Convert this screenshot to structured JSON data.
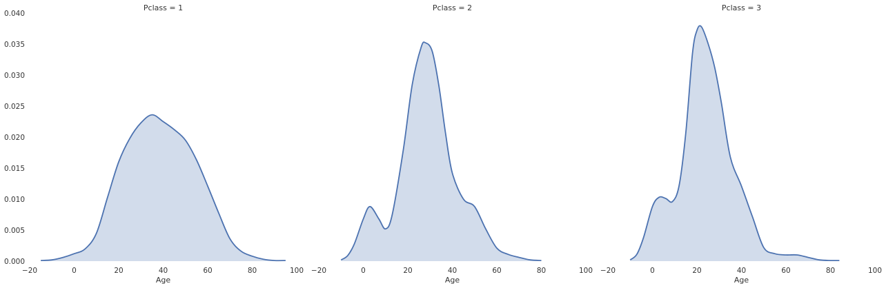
{
  "chart_data": {
    "type": "area",
    "ylim": [
      0,
      0.04
    ],
    "y_ticks": [
      "0.000",
      "0.005",
      "0.010",
      "0.015",
      "0.020",
      "0.025",
      "0.030",
      "0.035",
      "0.040"
    ],
    "grid": false,
    "colors": {
      "line": "#4c72b0",
      "fill": "#4c72b0",
      "fill_opacity": 0.25
    },
    "panels": [
      {
        "title": "Pclass = 1",
        "xlabel": "Age",
        "xlim": [
          -20,
          100
        ],
        "x_ticks": [
          "−20",
          "0",
          "20",
          "40",
          "60",
          "80",
          "100"
        ],
        "x": [
          -15,
          -10,
          -5,
          0,
          5,
          10,
          15,
          20,
          25,
          30,
          35,
          40,
          45,
          50,
          55,
          60,
          65,
          70,
          75,
          80,
          85,
          90,
          95
        ],
        "y": [
          0.0001,
          0.0002,
          0.0006,
          0.0012,
          0.002,
          0.0045,
          0.0103,
          0.016,
          0.0198,
          0.0223,
          0.0236,
          0.0225,
          0.0212,
          0.0195,
          0.0163,
          0.0121,
          0.0077,
          0.0036,
          0.0016,
          0.0008,
          0.0003,
          0.0001,
          0.0001
        ]
      },
      {
        "title": "Pclass = 2",
        "xlabel": "Age",
        "xlim": [
          -20,
          100
        ],
        "x_ticks": [
          "−20",
          "0",
          "20",
          "40",
          "60",
          "80",
          "100"
        ],
        "x": [
          -10,
          -7,
          -4,
          0,
          3,
          7,
          10,
          13,
          18,
          22,
          26,
          28,
          31,
          34,
          37,
          40,
          45,
          50,
          55,
          60,
          65,
          70,
          75,
          80
        ],
        "y": [
          0.0002,
          0.0009,
          0.0028,
          0.0068,
          0.0088,
          0.0068,
          0.0052,
          0.0075,
          0.018,
          0.0285,
          0.0345,
          0.0352,
          0.0338,
          0.0282,
          0.0205,
          0.0142,
          0.01,
          0.0088,
          0.0052,
          0.0021,
          0.0011,
          0.0006,
          0.0002,
          0.0001
        ]
      },
      {
        "title": "Pclass = 3",
        "xlabel": "Age",
        "xlim": [
          -20,
          100
        ],
        "x_ticks": [
          "−20",
          "0",
          "20",
          "40",
          "60",
          "80",
          "100"
        ],
        "x": [
          -10,
          -7,
          -4,
          0,
          3,
          6,
          9,
          12,
          15,
          18,
          20,
          22,
          25,
          28,
          31,
          35,
          40,
          45,
          50,
          55,
          60,
          65,
          70,
          75,
          80,
          84
        ],
        "y": [
          0.0002,
          0.0011,
          0.0038,
          0.0088,
          0.0103,
          0.0101,
          0.0096,
          0.0122,
          0.0207,
          0.0335,
          0.0372,
          0.0378,
          0.0351,
          0.0312,
          0.0255,
          0.0168,
          0.0121,
          0.0071,
          0.0022,
          0.0012,
          0.001,
          0.001,
          0.0006,
          0.0002,
          0.0001,
          0.0001
        ]
      }
    ]
  }
}
